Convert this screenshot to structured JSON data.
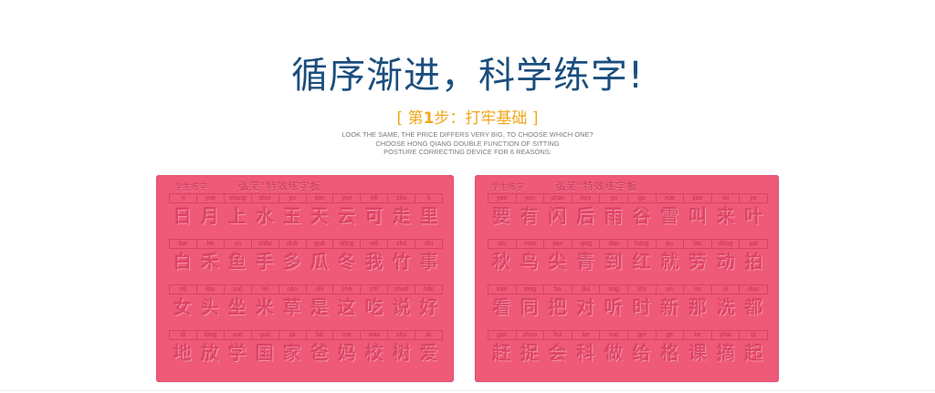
{
  "header": {
    "headline": "循序渐进，科学练字!",
    "step_open": "[ 第",
    "step_number": "1",
    "step_rest": "步：打牢基础 ]",
    "subtext": [
      "LOOK THE SAME, THE PRICE DIFFERS VERY BIG, TO CHOOSE WHICH ONE?",
      "CHOOSE HONG QIANG DOUBLE FUNCTION OF SITTING",
      "POSTURE CORRECTING DEVICE FOR 6 REASONS:"
    ]
  },
  "colors": {
    "headline": "#1b4e7e",
    "step": "#f0a81e",
    "board": "#ee5a78"
  },
  "boards": [
    {
      "title_left": "学生练字",
      "title_name": "弘芜°特效练字板",
      "rows": [
        {
          "pinyin": [
            "ri",
            "yue",
            "shang",
            "shui",
            "yu",
            "tian",
            "yun",
            "kě",
            "zǒu",
            "li"
          ],
          "chars": [
            "日",
            "月",
            "上",
            "水",
            "玉",
            "天",
            "云",
            "可",
            "走",
            "里"
          ]
        },
        {
          "pinyin": [
            "bai",
            "hé",
            "yú",
            "shǒu",
            "duō",
            "guā",
            "dōng",
            "wǒ",
            "zhú",
            "shi"
          ],
          "chars": [
            "白",
            "禾",
            "鱼",
            "手",
            "多",
            "瓜",
            "冬",
            "我",
            "竹",
            "事"
          ]
        },
        {
          "pinyin": [
            "nǚ",
            "tóu",
            "zuò",
            "mǐ",
            "cǎo",
            "shì",
            "zhè",
            "chī",
            "shuō",
            "hǎo"
          ],
          "chars": [
            "女",
            "头",
            "坐",
            "米",
            "草",
            "是",
            "这",
            "吃",
            "说",
            "好"
          ]
        },
        {
          "pinyin": [
            "di",
            "fàng",
            "xué",
            "guó",
            "jiā",
            "bà",
            "mā",
            "xiào",
            "shù",
            "ài"
          ],
          "chars": [
            "地",
            "放",
            "学",
            "国",
            "家",
            "爸",
            "妈",
            "校",
            "树",
            "爱"
          ]
        }
      ]
    },
    {
      "title_left": "学生练字",
      "title_name": "弘芜°特效练字板",
      "rows": [
        {
          "pinyin": [
            "yao",
            "you",
            "shan",
            "hou",
            "yu",
            "gu",
            "xue",
            "jiao",
            "lai",
            "ye"
          ],
          "chars": [
            "要",
            "有",
            "闪",
            "后",
            "雨",
            "谷",
            "雪",
            "叫",
            "来",
            "叶"
          ]
        },
        {
          "pinyin": [
            "qiu",
            "niao",
            "jian",
            "qing",
            "dao",
            "hong",
            "jiu",
            "lao",
            "dong",
            "pai"
          ],
          "chars": [
            "秋",
            "鸟",
            "尖",
            "青",
            "到",
            "红",
            "就",
            "劳",
            "动",
            "拍"
          ]
        },
        {
          "pinyin": [
            "kan",
            "tong",
            "ba",
            "dui",
            "ting",
            "shi",
            "xin",
            "na",
            "xi",
            "dou"
          ],
          "chars": [
            "看",
            "同",
            "把",
            "对",
            "听",
            "时",
            "新",
            "那",
            "洗",
            "都"
          ]
        },
        {
          "pinyin": [
            "gan",
            "zhuo",
            "hui",
            "ke",
            "zuo",
            "gei",
            "ge",
            "ke",
            "zhai",
            "qi"
          ],
          "chars": [
            "赶",
            "捉",
            "会",
            "科",
            "做",
            "给",
            "格",
            "课",
            "摘",
            "起"
          ]
        }
      ]
    }
  ]
}
